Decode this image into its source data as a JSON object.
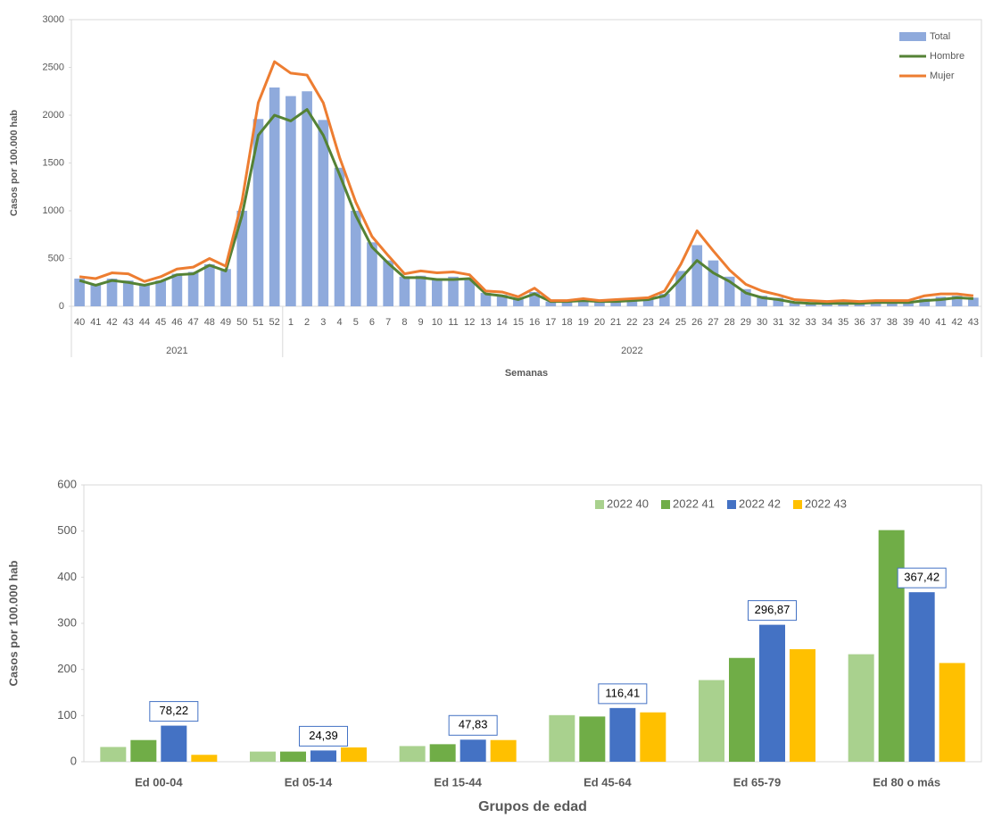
{
  "chart_data": [
    {
      "type": "bar_line",
      "ylabel": "Casos por 100.000 hab",
      "xlabel": "Semanas",
      "categories": [
        "40",
        "41",
        "42",
        "43",
        "44",
        "45",
        "46",
        "47",
        "48",
        "49",
        "50",
        "51",
        "52",
        "1",
        "2",
        "3",
        "4",
        "5",
        "6",
        "7",
        "8",
        "9",
        "10",
        "11",
        "12",
        "13",
        "14",
        "15",
        "16",
        "17",
        "18",
        "19",
        "20",
        "21",
        "22",
        "23",
        "24",
        "25",
        "26",
        "27",
        "28",
        "29",
        "30",
        "31",
        "32",
        "33",
        "34",
        "35",
        "36",
        "37",
        "38",
        "39",
        "40",
        "41",
        "42",
        "43"
      ],
      "x_groups": [
        {
          "label": "2021",
          "size": 13
        },
        {
          "label": "2022",
          "size": 43
        }
      ],
      "ylim": [
        0,
        3000
      ],
      "yticks": [
        0,
        500,
        1000,
        1500,
        2000,
        2500,
        3000
      ],
      "legend": "upper right",
      "series": [
        {
          "name": "Total",
          "type": "bar",
          "color": "#8faadc",
          "values": [
            290,
            230,
            290,
            270,
            220,
            270,
            340,
            360,
            440,
            390,
            1000,
            1960,
            2290,
            2200,
            2250,
            1950,
            1450,
            1000,
            670,
            480,
            310,
            320,
            290,
            310,
            290,
            140,
            120,
            80,
            150,
            50,
            50,
            60,
            50,
            60,
            70,
            80,
            130,
            370,
            640,
            480,
            310,
            180,
            110,
            90,
            50,
            40,
            40,
            40,
            40,
            50,
            50,
            50,
            80,
            100,
            110,
            90
          ]
        },
        {
          "name": "Hombre",
          "type": "line",
          "color": "#548235",
          "values": [
            270,
            220,
            270,
            250,
            220,
            260,
            330,
            340,
            430,
            370,
            950,
            1790,
            2000,
            1940,
            2060,
            1790,
            1380,
            950,
            620,
            450,
            300,
            300,
            280,
            280,
            290,
            130,
            110,
            70,
            130,
            50,
            50,
            60,
            50,
            50,
            60,
            70,
            110,
            290,
            480,
            350,
            260,
            140,
            90,
            70,
            40,
            30,
            30,
            30,
            30,
            40,
            40,
            40,
            60,
            70,
            90,
            80
          ]
        },
        {
          "name": "Mujer",
          "type": "line",
          "color": "#ed7d31",
          "values": [
            310,
            290,
            350,
            340,
            260,
            310,
            390,
            410,
            500,
            420,
            1100,
            2130,
            2560,
            2440,
            2420,
            2130,
            1560,
            1090,
            730,
            530,
            340,
            370,
            350,
            360,
            330,
            160,
            150,
            100,
            190,
            60,
            60,
            80,
            60,
            70,
            80,
            90,
            160,
            440,
            790,
            580,
            380,
            230,
            160,
            120,
            70,
            60,
            50,
            60,
            50,
            60,
            60,
            60,
            110,
            130,
            130,
            110
          ]
        }
      ]
    },
    {
      "type": "grouped_bar",
      "ylabel": "Casos por 100.000 hab",
      "xlabel": "Grupos de edad",
      "categories": [
        "Ed 00-04",
        "Ed 05-14",
        "Ed 15-44",
        "Ed 45-64",
        "Ed 65-79",
        "Ed 80 o más"
      ],
      "ylim": [
        0,
        600
      ],
      "yticks": [
        0,
        100,
        200,
        300,
        400,
        500,
        600
      ],
      "legend": "upper right",
      "series": [
        {
          "name": "2022 40",
          "color": "#a9d18e",
          "values": [
            32,
            22,
            34,
            101,
            177,
            233
          ]
        },
        {
          "name": "2022 41",
          "color": "#70ad47",
          "values": [
            47,
            22,
            38,
            98,
            225,
            502
          ]
        },
        {
          "name": "2022 42",
          "color": "#4472c4",
          "values": [
            78.22,
            24.39,
            47.83,
            116.41,
            296.87,
            367.42
          ],
          "value_labels": [
            "78,22",
            "24,39",
            "47,83",
            "116,41",
            "296,87",
            "367,42"
          ]
        },
        {
          "name": "2022 43",
          "color": "#ffc000",
          "values": [
            15,
            31,
            47,
            107,
            244,
            214
          ]
        }
      ]
    }
  ]
}
